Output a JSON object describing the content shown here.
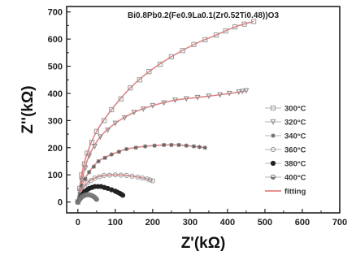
{
  "chart_data": {
    "type": "scatter",
    "title": "Bi0.8Pb0.2(Fe0.9La0.1(Zr0.52Ti0.48))O3",
    "xlabel": "Z'(kΩ)",
    "ylabel": "Z''(kΩ)",
    "xlim": [
      -30,
      700
    ],
    "ylim": [
      -40,
      720
    ],
    "xticks": [
      "0",
      "100",
      "200",
      "300",
      "400",
      "500",
      "600",
      "700"
    ],
    "yticks": [
      "0",
      "100",
      "200",
      "300",
      "400",
      "500",
      "600",
      "700"
    ],
    "legend_position": "right",
    "series": [
      {
        "name": "300°C",
        "marker": "square",
        "color": "#9a9a9a",
        "xmax": 470,
        "fit_color": "#e08585",
        "points": [
          [
            0,
            0
          ],
          [
            10,
            100
          ],
          [
            25,
            180
          ],
          [
            50,
            260
          ],
          [
            90,
            340
          ],
          [
            140,
            420
          ],
          [
            190,
            480
          ],
          [
            250,
            535
          ],
          [
            310,
            580
          ],
          [
            370,
            615
          ],
          [
            420,
            645
          ],
          [
            470,
            665
          ]
        ]
      },
      {
        "name": "320°C",
        "marker": "triangle-down",
        "color": "#8a8a8a",
        "xmax": 450,
        "fit_color": "#e08585",
        "points": [
          [
            0,
            0
          ],
          [
            10,
            80
          ],
          [
            30,
            170
          ],
          [
            60,
            240
          ],
          [
            100,
            290
          ],
          [
            150,
            330
          ],
          [
            200,
            355
          ],
          [
            260,
            375
          ],
          [
            320,
            385
          ],
          [
            380,
            395
          ],
          [
            430,
            405
          ],
          [
            450,
            410
          ]
        ]
      },
      {
        "name": "340°C",
        "marker": "star",
        "color": "#666666",
        "xmax": 340,
        "fit_color": "#e08585",
        "points": [
          [
            0,
            0
          ],
          [
            10,
            60
          ],
          [
            30,
            110
          ],
          [
            55,
            150
          ],
          [
            90,
            175
          ],
          [
            130,
            195
          ],
          [
            180,
            205
          ],
          [
            230,
            210
          ],
          [
            270,
            210
          ],
          [
            310,
            205
          ],
          [
            340,
            200
          ]
        ]
      },
      {
        "name": "360°C",
        "marker": "circle",
        "color": "#999999",
        "xmax": 200,
        "fit_color": "#e08585",
        "points": [
          [
            0,
            0
          ],
          [
            10,
            40
          ],
          [
            25,
            70
          ],
          [
            45,
            88
          ],
          [
            70,
            98
          ],
          [
            100,
            100
          ],
          [
            130,
            98
          ],
          [
            160,
            92
          ],
          [
            185,
            85
          ],
          [
            200,
            78
          ]
        ]
      },
      {
        "name": "380°C",
        "marker": "circle-filled",
        "color": "#222222",
        "xmax": 120,
        "fit_color": "#d08080",
        "points": [
          [
            0,
            0
          ],
          [
            8,
            20
          ],
          [
            18,
            38
          ],
          [
            30,
            50
          ],
          [
            45,
            57
          ],
          [
            62,
            57
          ],
          [
            80,
            50
          ],
          [
            100,
            40
          ],
          [
            112,
            32
          ],
          [
            120,
            25
          ]
        ]
      },
      {
        "name": "400°C",
        "marker": "circle-half",
        "color": "#777777",
        "xmax": 50,
        "fit_color": "#d08080",
        "points": [
          [
            0,
            0
          ],
          [
            5,
            10
          ],
          [
            10,
            18
          ],
          [
            17,
            24
          ],
          [
            25,
            27
          ],
          [
            33,
            26
          ],
          [
            40,
            22
          ],
          [
            46,
            16
          ],
          [
            50,
            10
          ]
        ]
      },
      {
        "name": "fitting",
        "marker": "line",
        "color": "#e06a6a"
      }
    ]
  }
}
